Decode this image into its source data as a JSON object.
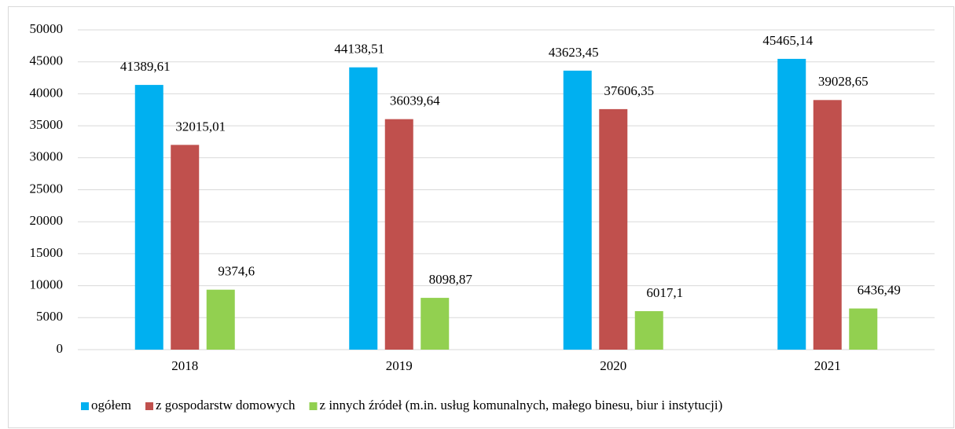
{
  "chart_data": {
    "type": "bar",
    "categories": [
      "2018",
      "2019",
      "2020",
      "2021"
    ],
    "series": [
      {
        "name": "ogółem",
        "color": "#00b0f0",
        "values": [
          41389.61,
          44138.51,
          43623.45,
          45465.14
        ],
        "value_labels": [
          "41389,61",
          "44138,51",
          "43623,45",
          "45465,14"
        ]
      },
      {
        "name": "z gospodarstw domowych",
        "color": "#c0504d",
        "values": [
          32015.01,
          36039.64,
          37606.35,
          39028.65
        ],
        "value_labels": [
          "32015,01",
          "36039,64",
          "37606,35",
          "39028,65"
        ]
      },
      {
        "name": "z innych źródeł (m.in. usług komunalnych, małego binesu, biur i instytucji)",
        "color": "#92d050",
        "values": [
          9374.6,
          8098.87,
          6017.1,
          6436.49
        ],
        "value_labels": [
          "9374,6",
          "8098,87",
          "6017,1",
          "6436,49"
        ]
      }
    ],
    "ylim": [
      0,
      50000
    ],
    "yticks": [
      0,
      5000,
      10000,
      15000,
      20000,
      25000,
      30000,
      35000,
      40000,
      45000,
      50000
    ],
    "grid": true,
    "legend": "bottom"
  }
}
